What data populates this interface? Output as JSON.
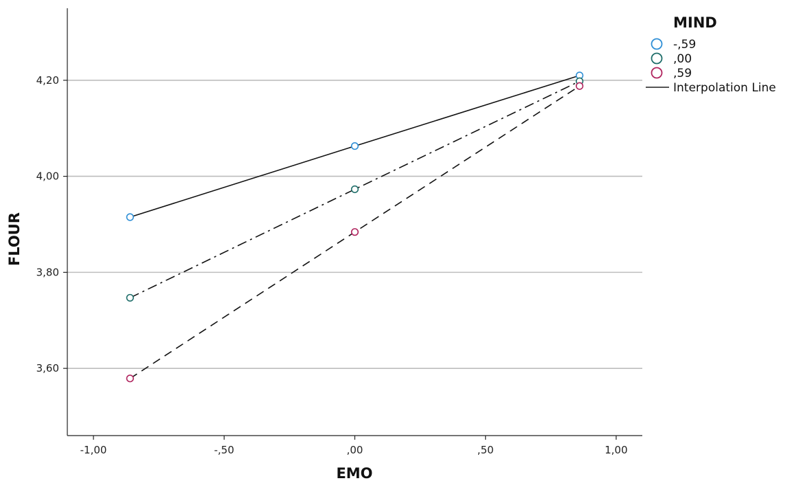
{
  "chart_data": {
    "type": "line",
    "xlabel": "EMO",
    "ylabel": "FLOUR",
    "xlim": [
      -1.1,
      1.1
    ],
    "ylim": [
      3.46,
      4.35
    ],
    "x_ticks": [
      -1.0,
      -0.5,
      0.0,
      0.5,
      1.0
    ],
    "x_tick_labels": [
      "-1,00",
      "-,50",
      ",00",
      ",50",
      "1,00"
    ],
    "y_ticks": [
      3.6,
      3.8,
      4.0,
      4.2
    ],
    "y_tick_labels": [
      "3,60",
      "3,80",
      "4,00",
      "4,20"
    ],
    "grid": "horizontal",
    "legend": {
      "title": "MIND",
      "placement": "top-right",
      "line_label": "Interpolation Line"
    },
    "series": [
      {
        "name": "-,59",
        "color": "#2f8fd6",
        "dash": "solid",
        "x": [
          -0.86,
          0.0,
          0.86
        ],
        "y": [
          3.915,
          4.063,
          4.21
        ]
      },
      {
        "name": ",00",
        "color": "#1f6e6a",
        "dash": "dashdot",
        "x": [
          -0.86,
          0.0,
          0.86
        ],
        "y": [
          3.747,
          3.973,
          4.198
        ]
      },
      {
        "name": ",59",
        "color": "#b0245e",
        "dash": "dashed",
        "x": [
          -0.86,
          0.0,
          0.86
        ],
        "y": [
          3.579,
          3.884,
          4.188
        ]
      }
    ]
  }
}
